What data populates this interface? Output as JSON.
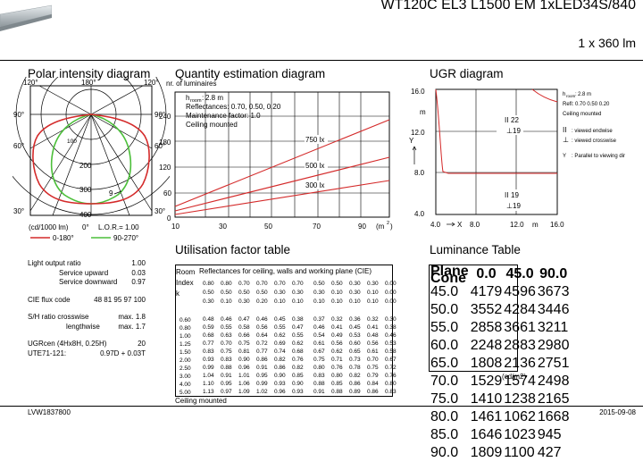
{
  "header": {
    "title": "WT120C EL3 L1500 EM 1xLED34S/840",
    "lumens": "1 x 360 lm"
  },
  "polar": {
    "title": "Polar intensity diagram",
    "angles": {
      "top_left": "120°",
      "top_center": "180°",
      "top_right": "120°",
      "mid_left": "90°",
      "mid_right": "90°",
      "low_left": "60°",
      "low_right": "60°",
      "bottom_left": "30°",
      "bottom_right": "30°"
    },
    "radial_labels": [
      "100",
      "200",
      "300",
      "400"
    ],
    "marker": "9",
    "unit": "(cd/1000 lm)",
    "zero": "0°",
    "lor": "L.O.R.= 1.00",
    "legend_red": "0-180°",
    "legend_green": "90-270°",
    "colors": {
      "red": "#d42a2a",
      "green": "#4cbf3a"
    }
  },
  "quantity": {
    "title": "Quantity estimation diagram",
    "y_unit": "nr. of luminaires",
    "room_line": "2.8 m",
    "reflectances": "Reflectances: 0.70, 0.50, 0.20",
    "maintenance": "Maintenance factor: 1.0",
    "mounting": "Ceiling mounted",
    "y_ticks": [
      "240",
      "180",
      "120",
      "60",
      "0"
    ],
    "x_ticks": [
      "10",
      "30",
      "50",
      "70",
      "90"
    ],
    "x_unit": "(m",
    "x_unit_sup": "2",
    "x_unit_close": ")",
    "curves": [
      "750 lx",
      "500 lx",
      "300 lx"
    ]
  },
  "ugr": {
    "title": "UGR diagram",
    "y_ticks": [
      "16.0",
      "12.0",
      "8.0",
      "4.0"
    ],
    "y_unit": "m",
    "y_axis": "Y",
    "x_axis": "X",
    "x_ticks": [
      "4.0",
      "8.0",
      "12.0",
      "16.0"
    ],
    "x_unit": "m",
    "label_22": "22",
    "label_19a": "19",
    "label_19b": "19",
    "label_19c": "19",
    "legend_room": "2.8 m",
    "legend_refl": "Refl: 0.70 0.50 0.20",
    "legend_mount": "Ceiling mounted",
    "legend_endwise": ": viewed endwise",
    "legend_crosswise": ": viewed crosswise",
    "legend_parallel": ": Parallel to viewing dir"
  },
  "utilisation": {
    "title": "Utilisation factor table",
    "header": "Reflectances for ceiling, walls and working plane (CIE)",
    "room_label": "Room",
    "index_label": "Index",
    "k_label": "k",
    "refl_rows": [
      [
        "0.80",
        "0.80",
        "0.70",
        "0.70",
        "0.70",
        "0.70",
        "0.50",
        "0.50",
        "0.30",
        "0.30",
        "0.00"
      ],
      [
        "0.50",
        "0.50",
        "0.50",
        "0.50",
        "0.30",
        "0.30",
        "0.30",
        "0.10",
        "0.30",
        "0.10",
        "0.00"
      ],
      [
        "0.30",
        "0.10",
        "0.30",
        "0.20",
        "0.10",
        "0.10",
        "0.10",
        "0.10",
        "0.10",
        "0.10",
        "0.00"
      ]
    ],
    "k_values": [
      "0.60",
      "0.80",
      "1.00",
      "1.25",
      "1.50",
      "2.00",
      "2.50",
      "3.00",
      "4.00",
      "5.00"
    ],
    "rows": [
      [
        "0.48",
        "0.46",
        "0.47",
        "0.46",
        "0.45",
        "0.38",
        "0.37",
        "0.32",
        "0.36",
        "0.32",
        "0.30"
      ],
      [
        "0.59",
        "0.55",
        "0.58",
        "0.56",
        "0.55",
        "0.47",
        "0.46",
        "0.41",
        "0.45",
        "0.41",
        "0.38"
      ],
      [
        "0.68",
        "0.63",
        "0.66",
        "0.64",
        "0.62",
        "0.55",
        "0.54",
        "0.49",
        "0.53",
        "0.48",
        "0.46"
      ],
      [
        "0.77",
        "0.70",
        "0.75",
        "0.72",
        "0.69",
        "0.62",
        "0.61",
        "0.56",
        "0.60",
        "0.56",
        "0.53"
      ],
      [
        "0.83",
        "0.75",
        "0.81",
        "0.77",
        "0.74",
        "0.68",
        "0.67",
        "0.62",
        "0.65",
        "0.61",
        "0.58"
      ],
      [
        "0.93",
        "0.83",
        "0.90",
        "0.86",
        "0.82",
        "0.76",
        "0.75",
        "0.71",
        "0.73",
        "0.70",
        "0.67"
      ],
      [
        "0.99",
        "0.88",
        "0.96",
        "0.91",
        "0.86",
        "0.82",
        "0.80",
        "0.76",
        "0.78",
        "0.75",
        "0.72"
      ],
      [
        "1.04",
        "0.91",
        "1.01",
        "0.95",
        "0.90",
        "0.85",
        "0.83",
        "0.80",
        "0.82",
        "0.79",
        "0.76"
      ],
      [
        "1.10",
        "0.95",
        "1.06",
        "0.99",
        "0.93",
        "0.90",
        "0.88",
        "0.85",
        "0.86",
        "0.84",
        "0.80"
      ],
      [
        "1.13",
        "0.97",
        "1.09",
        "1.02",
        "0.96",
        "0.93",
        "0.91",
        "0.88",
        "0.89",
        "0.86",
        "0.83"
      ]
    ],
    "footer": "Ceiling mounted"
  },
  "specs": {
    "lor_label": "Light output ratio",
    "lor_value": "1.00",
    "up_label": "Service upward",
    "up_value": "0.03",
    "down_label": "Service downward",
    "down_value": "0.97",
    "cie_label": "CIE flux code",
    "cie_value": "48 81 95 97 100",
    "sh_cross_label": "S/H ratio crosswise",
    "sh_cross_value": "max. 1.8",
    "sh_length_label": "lengthwise",
    "sh_length_value": "max. 1.7",
    "ugrc_label": "UGRcen (4Hx8H, 0.25H)",
    "ugrc_value": "20",
    "ute_label": "UTE71-121:",
    "ute_value": "0.97D + 0.03T"
  },
  "luminance": {
    "title": "Luminance Table",
    "col_plane": "Plane",
    "col_cone": "Cone",
    "columns": [
      "0.0",
      "45.0",
      "90.0"
    ],
    "rows": [
      [
        "45.0",
        "4179",
        "4596",
        "3673"
      ],
      [
        "50.0",
        "3552",
        "4284",
        "3446"
      ],
      [
        "55.0",
        "2858",
        "3661",
        "3211"
      ],
      [
        "60.0",
        "2248",
        "2883",
        "2980"
      ],
      [
        "65.0",
        "1808",
        "2136",
        "2751"
      ],
      [
        "70.0",
        "1529",
        "1574",
        "2498"
      ],
      [
        "75.0",
        "1410",
        "1238",
        "2165"
      ],
      [
        "80.0",
        "1461",
        "1062",
        "1668"
      ],
      [
        "85.0",
        "1646",
        "1023",
        "945"
      ],
      [
        "90.0",
        "1809",
        "1100",
        "427"
      ]
    ],
    "unit": "(cd/m2)"
  },
  "footer": {
    "code": "LVW1837800",
    "date": "2015-09-08"
  }
}
